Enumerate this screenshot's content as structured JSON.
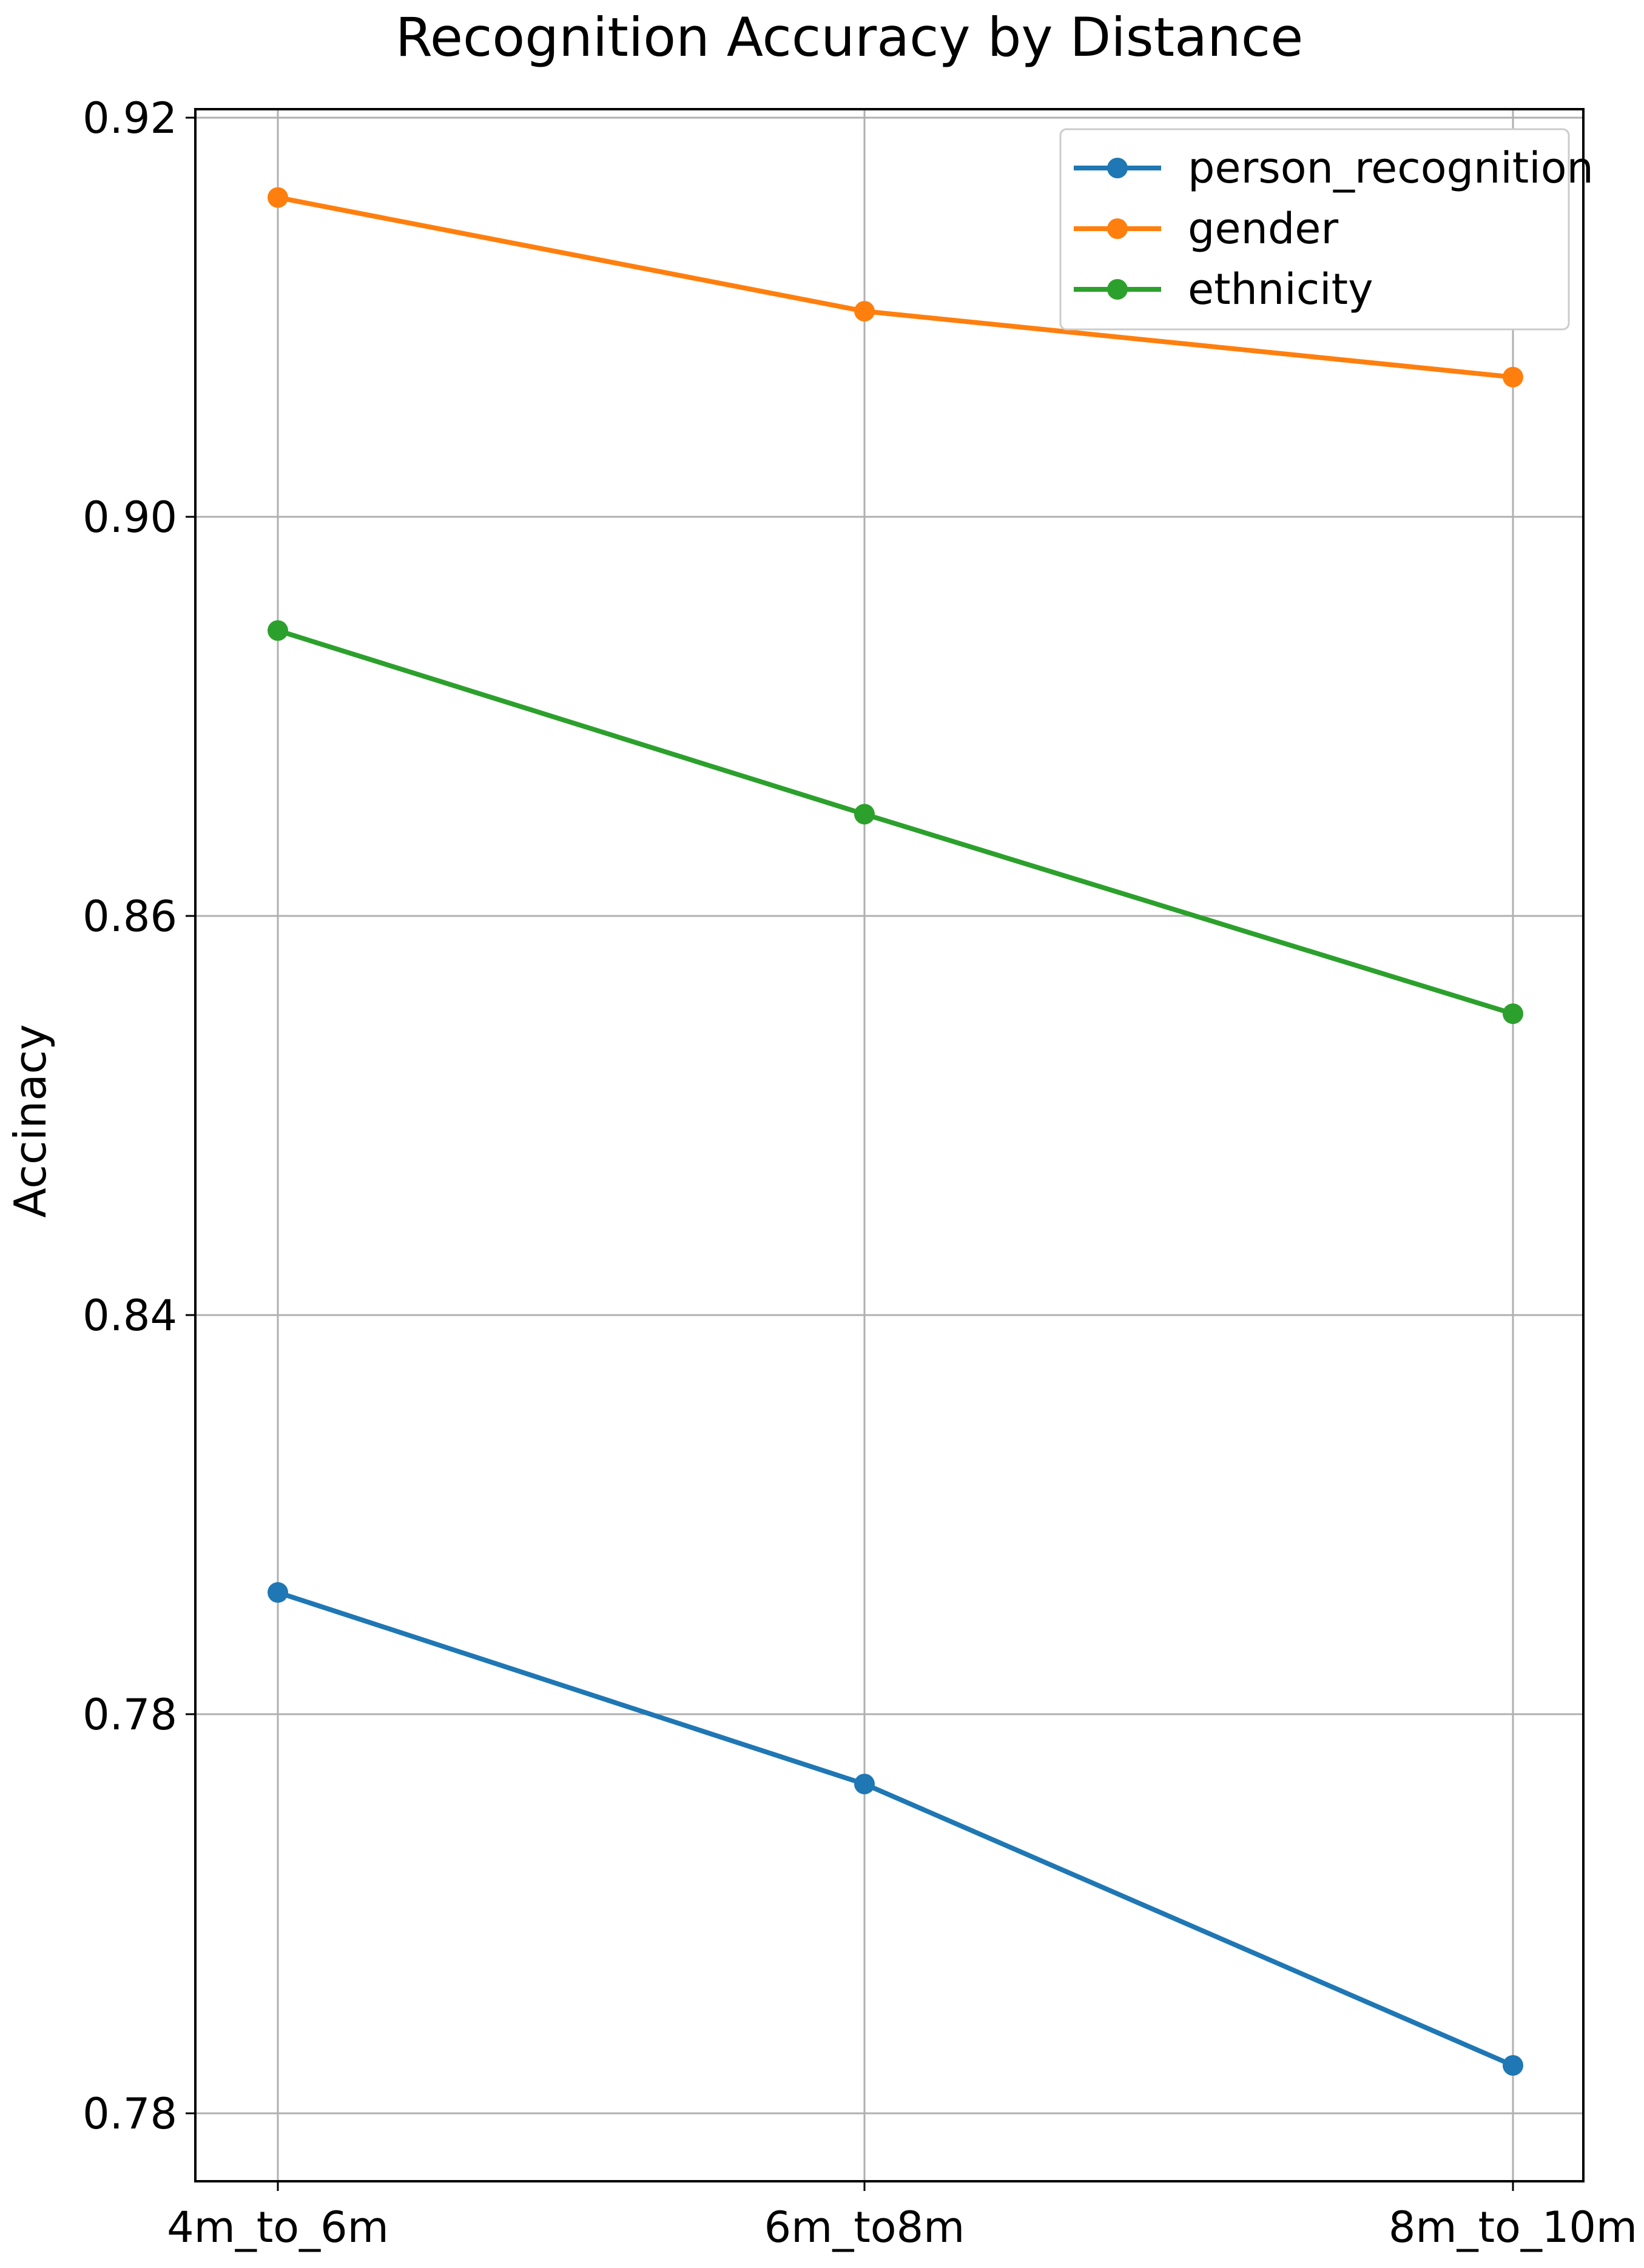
{
  "chart_data": {
    "type": "line",
    "title": "Recognition Accuracy by Distance",
    "xlabel": "",
    "ylabel": "Accinacy",
    "categories": [
      "4m_to_6m",
      "6m_to8m",
      "8m_to_10m"
    ],
    "y_tick_labels": [
      "0.92",
      "0.90",
      "0.86",
      "0.84",
      "0.78",
      "0.78"
    ],
    "series": [
      {
        "name": "person_recognition",
        "color": "#1f77b4",
        "marker": "circle",
        "values": [
          0.8461,
          0.8365,
          0.8224
        ]
      },
      {
        "name": "gender",
        "color": "#ff7f0e",
        "marker": "circle",
        "values": [
          0.916,
          0.9103,
          0.907
        ]
      },
      {
        "name": "ethnicity",
        "color": "#2ca02c",
        "marker": "circle",
        "values": [
          0.8943,
          0.8851,
          0.8751
        ]
      }
    ],
    "grid": true,
    "legend_position": "top-right"
  }
}
